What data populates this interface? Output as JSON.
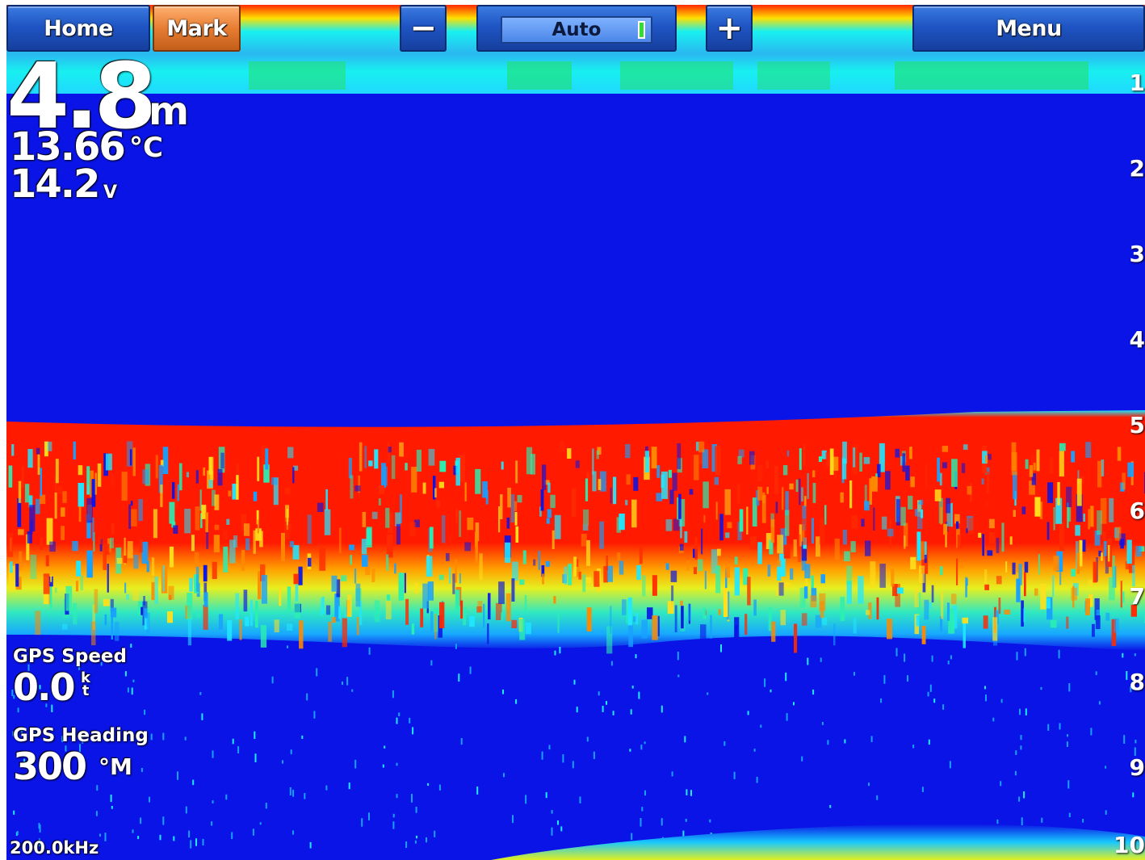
{
  "toolbar": {
    "home_label": "Home",
    "mark_label": "Mark",
    "minus_label": "−",
    "gain_label": "Auto",
    "plus_label": "+",
    "menu_label": "Menu"
  },
  "readouts": {
    "depth_value": "4.8",
    "depth_unit": "m",
    "temp_value": "13.66",
    "temp_unit": "°C",
    "voltage_value": "14.2",
    "voltage_unit": "V",
    "gps_speed_label": "GPS Speed",
    "gps_speed_value": "0.0",
    "gps_speed_unit": "kt",
    "gps_heading_label": "GPS Heading",
    "gps_heading_value": "300",
    "gps_heading_unit": "°M",
    "frequency": "200.0kHz"
  },
  "depth_scale": [
    "1",
    "2",
    "3",
    "4",
    "5",
    "6",
    "7",
    "8",
    "9",
    "10"
  ],
  "colors": {
    "water": "#0a14e6",
    "surface_band": "#18f0f0",
    "bottom_strong": "#ff1a00",
    "bottom_mid": "#f0f010",
    "bottom_weak": "#20e0ff",
    "mark_button": "#e77d32",
    "button": "#1f55c4"
  }
}
